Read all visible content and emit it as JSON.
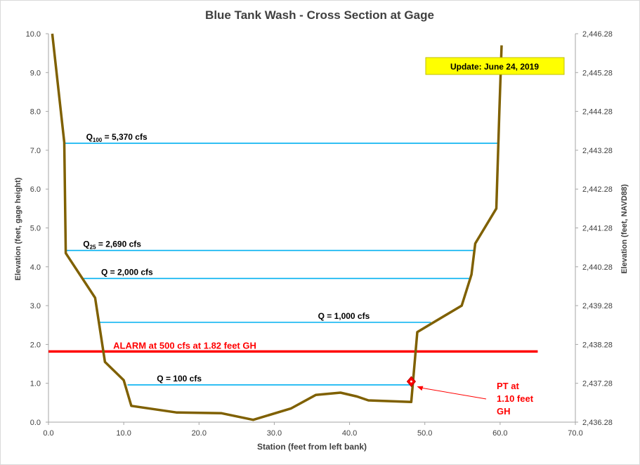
{
  "chart_data": {
    "type": "line",
    "title": "Blue Tank Wash - Cross Section at Gage",
    "xlabel": "Station (feet from left bank)",
    "ylabel_left": "Elevation  (feet, gage height)",
    "ylabel_right": "Elevation  (feet, NAVD88)",
    "xlim": [
      0,
      70
    ],
    "ylim": [
      0,
      10
    ],
    "x_ticks": [
      "0.0",
      "10.0",
      "20.0",
      "30.0",
      "40.0",
      "50.0",
      "60.0",
      "70.0"
    ],
    "y_ticks_left": [
      "0.0",
      "1.0",
      "2.0",
      "3.0",
      "4.0",
      "5.0",
      "6.0",
      "7.0",
      "8.0",
      "9.0",
      "10.0"
    ],
    "y_ticks_right": [
      "2,436.28",
      "2,437.28",
      "2,438.28",
      "2,439.28",
      "2,440.28",
      "2,441.28",
      "2,442.28",
      "2,443.28",
      "2,444.28",
      "2,445.28",
      "2,446.28"
    ],
    "grid": false,
    "cross_section": {
      "color": "#7f6000",
      "points": [
        [
          0.5,
          10.0
        ],
        [
          2.1,
          7.2
        ],
        [
          2.3,
          4.35
        ],
        [
          6.2,
          3.2
        ],
        [
          7.5,
          1.55
        ],
        [
          10.0,
          1.08
        ],
        [
          11.0,
          0.42
        ],
        [
          17.0,
          0.25
        ],
        [
          23.0,
          0.23
        ],
        [
          27.2,
          0.06
        ],
        [
          32.2,
          0.35
        ],
        [
          35.5,
          0.7
        ],
        [
          38.8,
          0.76
        ],
        [
          41.0,
          0.66
        ],
        [
          42.5,
          0.56
        ],
        [
          48.2,
          0.52
        ],
        [
          49.0,
          2.32
        ],
        [
          54.9,
          3.0
        ],
        [
          56.2,
          3.8
        ],
        [
          56.7,
          4.6
        ],
        [
          59.5,
          5.5
        ],
        [
          59.9,
          8.0
        ],
        [
          60.2,
          9.7
        ]
      ]
    },
    "flow_lines": [
      {
        "prefix": "Q",
        "sub": "100",
        "suffix": " = 5,370  cfs",
        "y": 7.18,
        "x1": 2.1,
        "x2": 59.8,
        "label_x": 5.0
      },
      {
        "prefix": "Q",
        "sub": "25",
        "suffix": " = 2,690  cfs",
        "y": 4.42,
        "x1": 2.3,
        "x2": 56.7,
        "label_x": 4.6
      },
      {
        "prefix": "Q = 2,000  cfs",
        "sub": "",
        "suffix": "",
        "y": 3.7,
        "x1": 4.6,
        "x2": 56.2,
        "label_x": 7.0
      },
      {
        "prefix": "Q = 1,000  cfs",
        "sub": "",
        "suffix": "",
        "y": 2.57,
        "x1": 6.8,
        "x2": 50.8,
        "label_x": 35.8
      },
      {
        "prefix": "Q = 100  cfs",
        "sub": "",
        "suffix": "",
        "y": 0.96,
        "x1": 10.5,
        "x2": 48.2,
        "label_x": 14.4
      }
    ],
    "flow_color": "#00b0f0",
    "alarm": {
      "label": "ALARM at 500  cfs at 1.82  feet GH",
      "y": 1.82,
      "x1": 0.0,
      "x2": 65.0,
      "color": "#ff0000",
      "label_x": 8.6
    },
    "pt_marker": {
      "x": 48.2,
      "y": 1.1,
      "color": "#ff0000"
    },
    "pt_label_lines": [
      "PT at",
      "1.10  feet",
      "GH"
    ],
    "update_box": {
      "text": "Update: June 24, 2019",
      "fill": "#ffff00"
    }
  }
}
